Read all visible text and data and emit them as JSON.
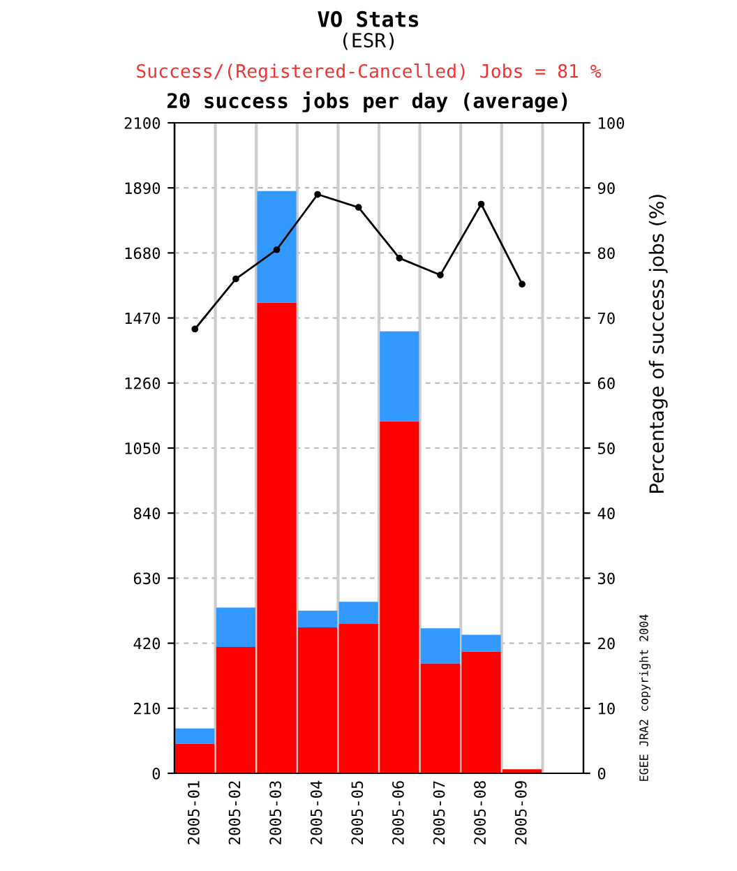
{
  "chart_data": {
    "type": "bar",
    "title": "VO Stats",
    "subtitle": "(ESR)",
    "annotations": [
      "Success/(Registered-Cancelled) Jobs = 81 %",
      "20 success jobs per day (average)",
      "EGEE JRA2 copyright 2004"
    ],
    "categories": [
      "2005-01",
      "2005-02",
      "2005-03",
      "2005-04",
      "2005-05",
      "2005-06",
      "2005-07",
      "2005-08",
      "2005-09"
    ],
    "stacked": true,
    "series": [
      {
        "color": "#ff0000",
        "values": [
          96,
          408,
          1520,
          471,
          482,
          1136,
          355,
          393,
          13
        ]
      },
      {
        "color": "#3399ff",
        "values": [
          49,
          127,
          360,
          54,
          72,
          291,
          113,
          54,
          0
        ]
      },
      {
        "type": "line",
        "axis": "y2",
        "color": "#000000",
        "marker": "circle",
        "values": [
          68.3,
          76.0,
          80.5,
          89.0,
          87.0,
          79.2,
          76.6,
          87.5,
          75.2
        ]
      }
    ],
    "ylim": [
      0,
      2100
    ],
    "yticks": [
      0,
      210,
      420,
      630,
      840,
      1050,
      1260,
      1470,
      1680,
      1890,
      2100
    ],
    "y2lim": [
      0,
      100
    ],
    "y2ticks": [
      0,
      10,
      20,
      30,
      40,
      50,
      60,
      70,
      80,
      90,
      100
    ],
    "y2label": "Percentage of success jobs (%)",
    "grid": true,
    "legend": false
  }
}
